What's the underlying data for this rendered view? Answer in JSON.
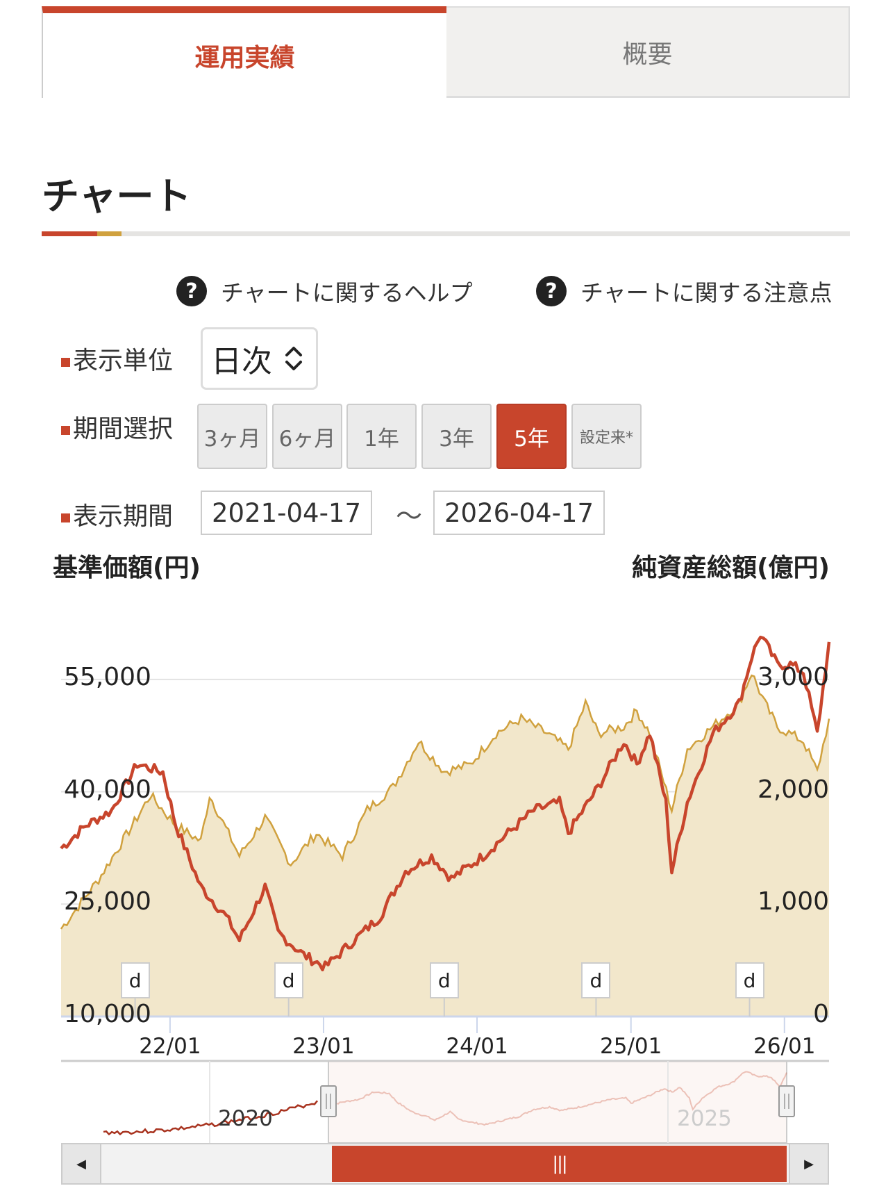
{
  "tabs": [
    {
      "label": "運用実績",
      "active": true
    },
    {
      "label": "概要",
      "active": false
    }
  ],
  "section_title": "チャート",
  "help_links": [
    {
      "icon": "question-circle-icon",
      "label": "チャートに関するヘルプ"
    },
    {
      "icon": "question-circle-icon",
      "label": "チャートに関する注意点"
    }
  ],
  "controls": {
    "unit_label": "表示単位",
    "unit_value": "日次",
    "period_label": "期間選択",
    "periods": [
      "3ヶ月",
      "6ヶ月",
      "1年",
      "3年",
      "5年",
      "設定来*"
    ],
    "active_period": "5年",
    "range_label": "表示期間",
    "start_date": "2021-04-17",
    "tilde": "〜",
    "end_date": "2026-04-17"
  },
  "colors": {
    "accent": "#c8452c",
    "gold": "#d0a13e",
    "area": "#f2e7cb"
  },
  "chart_data": {
    "type": "line",
    "left_axis": {
      "label": "基準価額(円)",
      "ticks": [
        "10,000",
        "25,000",
        "40,000",
        "55,000"
      ],
      "tick_values": [
        10000,
        25000,
        40000,
        55000
      ],
      "ylim": [
        10000,
        65000
      ]
    },
    "right_axis": {
      "label": "純資産総額(億円)",
      "ticks": [
        "0",
        "1,000",
        "2,000",
        "3,000"
      ],
      "tick_values": [
        0,
        1000,
        2000,
        3000
      ],
      "ylim": [
        0,
        3667
      ]
    },
    "x_ticks": [
      "22/01",
      "23/01",
      "24/01",
      "25/01",
      "26/01"
    ],
    "x_tick_dates": [
      "2022-01-01",
      "2023-01-01",
      "2024-01-01",
      "2025-01-01",
      "2026-01-01"
    ],
    "xlim": [
      "2021-04-17",
      "2026-04-17"
    ],
    "grid": true,
    "series": [
      {
        "axis": "left",
        "type": "line",
        "color": "#c8452c",
        "points": [
          [
            "2021-04-17",
            32450
          ],
          [
            "2021-06-15",
            35500
          ],
          [
            "2021-08-15",
            37500
          ],
          [
            "2021-10-15",
            43700
          ],
          [
            "2021-12-15",
            42600
          ],
          [
            "2022-01-15",
            35500
          ],
          [
            "2022-03-15",
            27300
          ],
          [
            "2022-05-15",
            23300
          ],
          [
            "2022-06-15",
            20200
          ],
          [
            "2022-08-15",
            27300
          ],
          [
            "2022-09-15",
            21200
          ],
          [
            "2022-11-15",
            18200
          ],
          [
            "2023-01-05",
            16600
          ],
          [
            "2023-03-15",
            20200
          ],
          [
            "2023-05-15",
            23300
          ],
          [
            "2023-07-15",
            29400
          ],
          [
            "2023-09-15",
            31400
          ],
          [
            "2023-11-01",
            28400
          ],
          [
            "2024-01-15",
            31400
          ],
          [
            "2024-03-15",
            34500
          ],
          [
            "2024-05-15",
            37500
          ],
          [
            "2024-07-15",
            38600
          ],
          [
            "2024-08-05",
            34500
          ],
          [
            "2024-10-15",
            40600
          ],
          [
            "2024-12-15",
            46700
          ],
          [
            "2025-01-15",
            43700
          ],
          [
            "2025-02-15",
            47800
          ],
          [
            "2025-03-25",
            38600
          ],
          [
            "2025-04-08",
            29400
          ],
          [
            "2025-05-15",
            38600
          ],
          [
            "2025-07-15",
            47800
          ],
          [
            "2025-09-15",
            51800
          ],
          [
            "2025-10-15",
            58000
          ],
          [
            "2025-11-05",
            61000
          ],
          [
            "2025-12-15",
            57000
          ],
          [
            "2026-01-15",
            57000
          ],
          [
            "2026-02-15",
            56000
          ],
          [
            "2026-03-20",
            47800
          ],
          [
            "2026-04-17",
            60000
          ]
        ]
      },
      {
        "axis": "right",
        "type": "area",
        "color": "#d0a13e",
        "points": [
          [
            "2021-04-17",
            780
          ],
          [
            "2021-07-15",
            1220
          ],
          [
            "2021-10-15",
            1770
          ],
          [
            "2021-11-15",
            1970
          ],
          [
            "2022-01-15",
            1700
          ],
          [
            "2022-03-15",
            1560
          ],
          [
            "2022-04-05",
            1970
          ],
          [
            "2022-06-15",
            1430
          ],
          [
            "2022-08-15",
            1770
          ],
          [
            "2022-10-15",
            1360
          ],
          [
            "2022-12-15",
            1630
          ],
          [
            "2023-02-15",
            1430
          ],
          [
            "2023-04-15",
            1840
          ],
          [
            "2023-06-15",
            2040
          ],
          [
            "2023-08-15",
            2450
          ],
          [
            "2023-10-15",
            2180
          ],
          [
            "2023-12-15",
            2240
          ],
          [
            "2024-02-15",
            2520
          ],
          [
            "2024-04-15",
            2650
          ],
          [
            "2024-06-15",
            2520
          ],
          [
            "2024-08-05",
            2380
          ],
          [
            "2024-09-15",
            2790
          ],
          [
            "2024-10-15",
            2520
          ],
          [
            "2024-12-15",
            2580
          ],
          [
            "2025-01-15",
            2720
          ],
          [
            "2025-02-15",
            2520
          ],
          [
            "2025-04-08",
            1840
          ],
          [
            "2025-05-15",
            2380
          ],
          [
            "2025-07-15",
            2580
          ],
          [
            "2025-09-15",
            2790
          ],
          [
            "2025-10-15",
            3060
          ],
          [
            "2025-11-15",
            2790
          ],
          [
            "2025-12-15",
            2580
          ],
          [
            "2026-02-15",
            2450
          ],
          [
            "2026-03-20",
            2180
          ],
          [
            "2026-04-17",
            2650
          ]
        ]
      }
    ],
    "flags": [
      {
        "date": "2021-10-10",
        "label": "d"
      },
      {
        "date": "2022-10-10",
        "label": "d"
      },
      {
        "date": "2023-10-15",
        "label": "d"
      },
      {
        "date": "2024-10-10",
        "label": "d"
      },
      {
        "date": "2025-10-10",
        "label": "d"
      }
    ],
    "navigator": {
      "labels": [
        "2020",
        "2025"
      ],
      "range_selected": [
        "2021-04-17",
        "2026-04-17"
      ]
    }
  }
}
